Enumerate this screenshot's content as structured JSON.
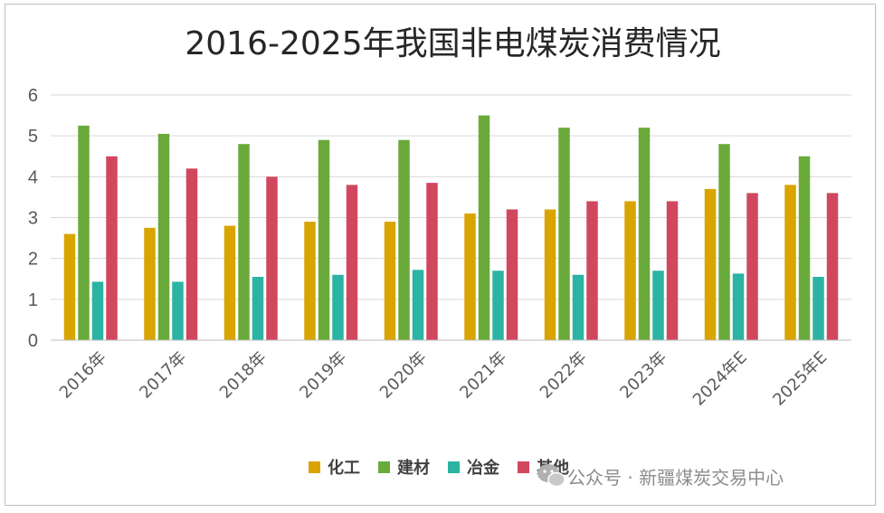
{
  "watermark": {
    "text": "公众号 · 新疆煤炭交易中心",
    "icon": "wechat-icon"
  },
  "chart_data": {
    "type": "bar",
    "title": "2016-2025年我国非电煤炭消费情况",
    "xlabel": "",
    "ylabel": "",
    "ylim": [
      0,
      6
    ],
    "yticks": [
      "0",
      "1",
      "2",
      "3",
      "4",
      "5",
      "6"
    ],
    "grid": true,
    "legend_position": "bottom-right",
    "categories": [
      "2016年",
      "2017年",
      "2018年",
      "2019年",
      "2020年",
      "2021年",
      "2022年",
      "2023年",
      "2024年E",
      "2025年E"
    ],
    "series": [
      {
        "name": "化工",
        "color": "#d9a400",
        "values": [
          2.6,
          2.75,
          2.8,
          2.9,
          2.9,
          3.1,
          3.2,
          3.4,
          3.7,
          3.8
        ]
      },
      {
        "name": "建材",
        "color": "#6aaa3a",
        "values": [
          5.25,
          5.05,
          4.8,
          4.9,
          4.9,
          5.5,
          5.2,
          5.2,
          4.8,
          4.5
        ]
      },
      {
        "name": "冶金",
        "color": "#2bb3a3",
        "values": [
          1.43,
          1.43,
          1.55,
          1.6,
          1.72,
          1.7,
          1.6,
          1.7,
          1.63,
          1.55
        ]
      },
      {
        "name": "其他",
        "color": "#d1485e",
        "values": [
          4.5,
          4.2,
          4.0,
          3.8,
          3.85,
          3.2,
          3.4,
          3.4,
          3.6,
          3.6
        ]
      }
    ]
  }
}
